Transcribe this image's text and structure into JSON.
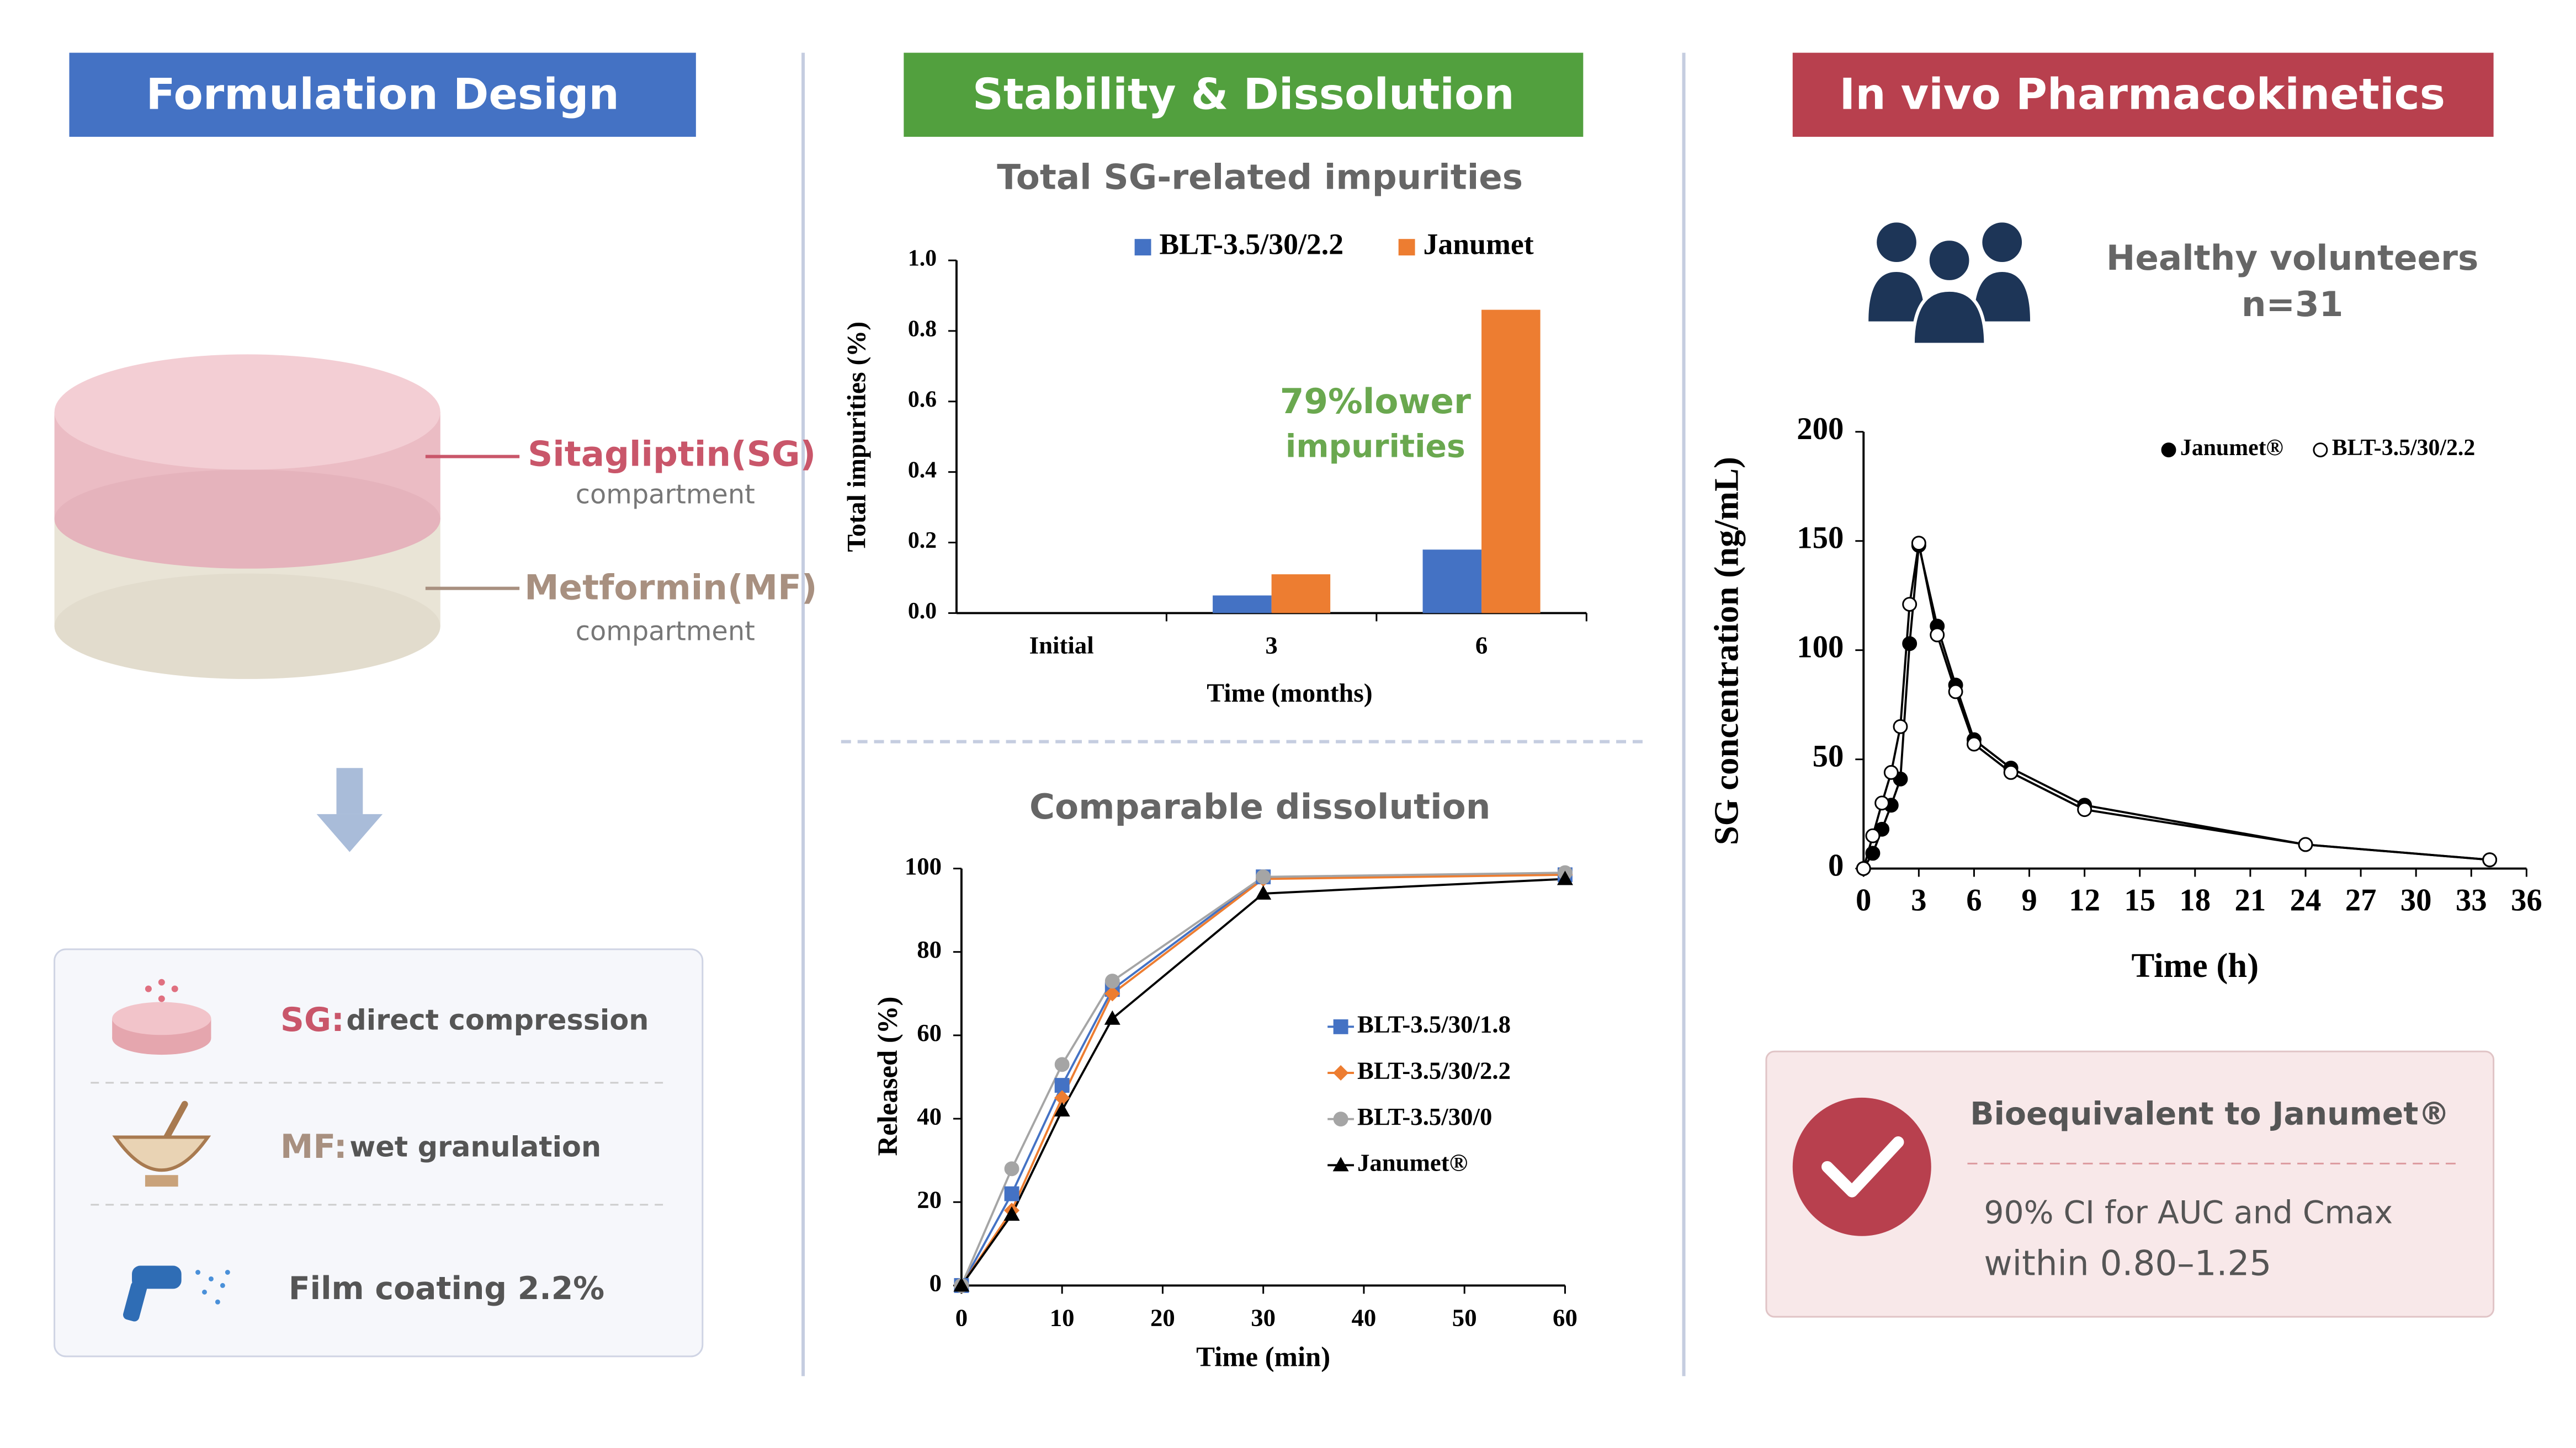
{
  "panels": [
    {
      "title": "Formulation Design"
    },
    {
      "title": "Stability & Dissolution"
    },
    {
      "title": "In vivo Pharmacokinetics"
    }
  ],
  "formulation": {
    "sg_label": "Sitagliptin(SG)",
    "sg_sub": "compartment",
    "mf_label": "Metformin(MF)",
    "mf_sub": "compartment",
    "steps": [
      {
        "prefix": "SG:",
        "text": "direct compression"
      },
      {
        "prefix": "MF:",
        "text": "wet granulation"
      },
      {
        "text": "Film coating 2.2%"
      }
    ]
  },
  "pk_info": {
    "volunteers": "Healthy volunteers",
    "n": "n=31",
    "conclusion": "Bioequivalent to Janumet®",
    "ci_line1": "90% CI for AUC and Cmax",
    "ci_line2": "within 0.80–1.25"
  },
  "chart_data": [
    {
      "type": "bar",
      "title": "Total SG-related impurities",
      "x_label": "Time (months)",
      "y_label": "Total impurities (%)",
      "categories": [
        "Initial",
        "3",
        "6"
      ],
      "series": [
        {
          "name": "BLT-3.5/30/2.2",
          "color": "#4472c4",
          "values": [
            0,
            0.05,
            0.18
          ]
        },
        {
          "name": "Janumet",
          "color": "#ed7d31",
          "values": [
            0,
            0.11,
            0.86
          ]
        }
      ],
      "ylim": [
        0,
        1
      ],
      "yticks": [
        {
          "value": 0,
          "label": "0.0"
        },
        0.2,
        0.4,
        0.6,
        0.8,
        {
          "value": 1,
          "label": "1.0"
        }
      ],
      "annotation": [
        "79%lower",
        "impurities"
      ],
      "annotation_color": "#6aa84f",
      "grid": false
    },
    {
      "type": "line",
      "title": "Comparable dissolution",
      "x_label": "Time (min)",
      "y_label": "Released (%)",
      "x": [
        0,
        5,
        10,
        15,
        30,
        60
      ],
      "series": [
        {
          "name": "BLT-3.5/30/1.8",
          "color": "#4472c4",
          "marker": "square",
          "values": [
            0,
            22,
            48,
            71,
            98,
            98.5
          ]
        },
        {
          "name": "BLT-3.5/30/2.2",
          "color": "#ed7d31",
          "marker": "diamond",
          "values": [
            0,
            18,
            45,
            70,
            97.5,
            98.5
          ]
        },
        {
          "name": "BLT-3.5/30/0",
          "color": "#a5a5a5",
          "marker": "circle",
          "values": [
            0,
            28,
            53,
            73,
            98,
            99
          ]
        },
        {
          "name": "Janumet®",
          "color": "#000000",
          "marker": "triangle",
          "values": [
            0,
            17,
            42,
            64,
            94,
            97.5
          ]
        }
      ],
      "xlim": [
        0,
        60
      ],
      "xticks": [
        0,
        10,
        20,
        30,
        40,
        50,
        60
      ],
      "ylim": [
        0,
        100
      ],
      "yticks": [
        0,
        20,
        40,
        60,
        80,
        100
      ],
      "grid": false
    },
    {
      "type": "line",
      "x_label": "Time (h)",
      "y_label": "SG concentration (ng/mL)",
      "x": [
        0,
        0.5,
        1,
        1.5,
        2,
        2.5,
        3,
        4,
        5,
        6,
        8,
        12,
        24,
        34
      ],
      "series": [
        {
          "name": "Janumet®",
          "color": "#000000",
          "marker": "circle",
          "values": [
            0,
            7,
            18,
            29,
            41,
            103,
            148,
            111,
            84,
            59,
            46,
            29,
            11,
            4
          ]
        },
        {
          "name": "BLT-3.5/30/2.2",
          "color": "#000000",
          "marker": "circle",
          "hollow": true,
          "values": [
            0,
            15,
            30,
            44,
            65,
            121,
            149,
            107,
            81,
            57,
            44,
            27,
            11,
            4
          ]
        }
      ],
      "xlim": [
        0,
        36
      ],
      "xticks": [
        0,
        3,
        6,
        9,
        12,
        15,
        18,
        21,
        24,
        27,
        30,
        33,
        36
      ],
      "ylim": [
        0,
        200
      ],
      "yticks": [
        0,
        50,
        100,
        150,
        200
      ],
      "grid": false
    }
  ]
}
